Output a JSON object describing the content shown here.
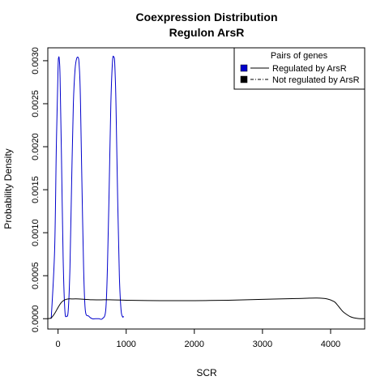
{
  "chart_data": {
    "type": "line",
    "title": "Coexpression Distribution",
    "subtitle": "Regulon ArsR",
    "xlabel": "SCR",
    "ylabel": "Probability Density",
    "xlim": [
      -150,
      4500
    ],
    "ylim": [
      -0.00012,
      0.00315
    ],
    "x_ticks": [
      0,
      1000,
      2000,
      3000,
      4000
    ],
    "x_tick_labels": [
      "0",
      "1000",
      "2000",
      "3000",
      "4000"
    ],
    "y_ticks": [
      0,
      0.0005,
      0.001,
      0.0015,
      0.002,
      0.0025,
      0.003
    ],
    "y_tick_labels": [
      "0.0000",
      "0.0005",
      "0.0010",
      "0.0015",
      "0.0020",
      "0.0025",
      "0.0030"
    ],
    "legend": {
      "title": "Pairs of genes",
      "position": "top-right",
      "entries": [
        {
          "label": "Regulated by  ArsR",
          "fill": "#0000cc",
          "line_style": "solid"
        },
        {
          "label": "Not regulated by  ArsR",
          "fill": "#000000",
          "line_style": "dashdot"
        }
      ]
    },
    "series": [
      {
        "key": "regulated",
        "color": "#0000cc",
        "x": [
          -100,
          -50,
          -25,
          0,
          10,
          20,
          30,
          50,
          75,
          100,
          125,
          150,
          175,
          200,
          225,
          250,
          275,
          300,
          310,
          320,
          330,
          350,
          375,
          400,
          450,
          500,
          550,
          600,
          650,
          700,
          725,
          750,
          775,
          800,
          820,
          830,
          840,
          850,
          875,
          900,
          925,
          950,
          960
        ],
        "y": [
          0.0,
          0.0008,
          0.002,
          0.0029,
          0.00304,
          0.003,
          0.0028,
          0.0019,
          0.0007,
          0.0001,
          3e-05,
          0.0001,
          0.0006,
          0.0016,
          0.0025,
          0.0029,
          0.00303,
          0.00303,
          0.00295,
          0.0028,
          0.0025,
          0.0016,
          0.0006,
          0.0001,
          3e-05,
          0.0,
          0.0,
          0.0,
          0.0,
          0.0001,
          0.0006,
          0.0015,
          0.0025,
          0.003,
          0.00304,
          0.003,
          0.0028,
          0.0025,
          0.0014,
          0.0005,
          0.0001,
          2e-05,
          3e-05
        ]
      },
      {
        "key": "not_regulated",
        "color": "#000000",
        "x": [
          -150,
          -100,
          -50,
          0,
          50,
          100,
          150,
          200,
          300,
          500,
          750,
          1000,
          1500,
          2000,
          2500,
          3000,
          3500,
          3800,
          3950,
          4050,
          4100,
          4150,
          4200,
          4300,
          4400,
          4500
        ],
        "y": [
          0.0,
          1e-05,
          6e-05,
          0.00013,
          0.00019,
          0.00022,
          0.00023,
          0.00023,
          0.00023,
          0.00022,
          0.00022,
          0.000215,
          0.00021,
          0.00021,
          0.000215,
          0.000225,
          0.000235,
          0.00024,
          0.00023,
          0.0002,
          0.00016,
          0.00011,
          7e-05,
          2e-05,
          3e-06,
          0.0
        ]
      }
    ]
  }
}
